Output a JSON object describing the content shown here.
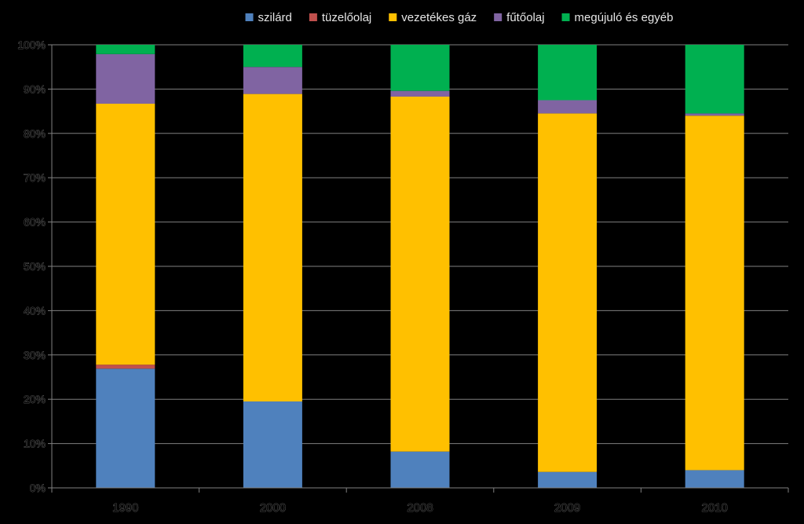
{
  "chart_data": {
    "type": "bar",
    "stacked": true,
    "categories": [
      "1990",
      "2000",
      "2008",
      "2009",
      "2010"
    ],
    "series": [
      {
        "name": "szilárd",
        "color": "#4f81bd",
        "values": [
          26.9,
          19.5,
          8.2,
          3.6,
          4.0
        ]
      },
      {
        "name": "tüzelőolaj",
        "color": "#c0504d",
        "values": [
          0.9,
          0.0,
          0.0,
          0.0,
          0.0
        ]
      },
      {
        "name": "vezetékes gáz",
        "color": "#ffc000",
        "values": [
          58.9,
          69.4,
          80.1,
          80.9,
          80.0
        ]
      },
      {
        "name": "fűtőolaj",
        "color": "#8064a2",
        "values": [
          11.2,
          6.1,
          1.3,
          3.0,
          0.5
        ]
      },
      {
        "name": "megújuló és egyéb",
        "color": "#00b050",
        "values": [
          2.1,
          5.0,
          10.4,
          12.5,
          15.5
        ]
      }
    ],
    "y_ticks": [
      "0%",
      "10%",
      "20%",
      "30%",
      "40%",
      "50%",
      "60%",
      "70%",
      "80%",
      "90%",
      "100%"
    ],
    "ylim": [
      0,
      100
    ],
    "legend_position": "top-center",
    "grid": true,
    "gridline_color": "#7f7f7f"
  }
}
